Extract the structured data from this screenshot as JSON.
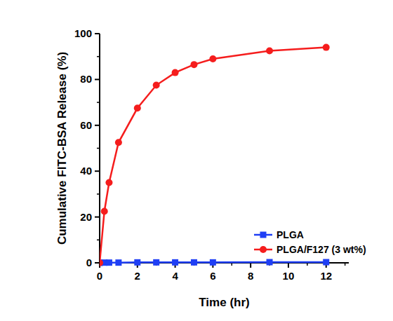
{
  "chart_data": {
    "type": "line",
    "x_label": "Time (hr)",
    "y_label": "Cumulative FITC-BSA Release (%)",
    "x": [
      0,
      0.25,
      0.5,
      1,
      2,
      3,
      4,
      5,
      6,
      9,
      12
    ],
    "series": [
      {
        "name": "PLGA",
        "color": "#1f3ff5",
        "marker": "square",
        "line_style": "solid",
        "values": [
          0,
          0.1,
          0.1,
          0.1,
          0.2,
          0.2,
          0.2,
          0.2,
          0.2,
          0.3,
          0.3
        ]
      },
      {
        "name": "PLGA/F127 (3 wt%)",
        "color": "#f51d1d",
        "marker": "circle",
        "line_style": "solid",
        "values": [
          0,
          22.5,
          35,
          52.5,
          67.5,
          77.5,
          83,
          86.5,
          89,
          92.5,
          94
        ]
      }
    ],
    "xlim": [
      0,
      13.2
    ],
    "xticks": [
      0,
      2,
      4,
      6,
      8,
      10,
      12
    ],
    "ylim": [
      0,
      100
    ],
    "yticks": [
      0,
      20,
      40,
      60,
      80,
      100
    ],
    "legend": "lower-right",
    "grid": false
  }
}
